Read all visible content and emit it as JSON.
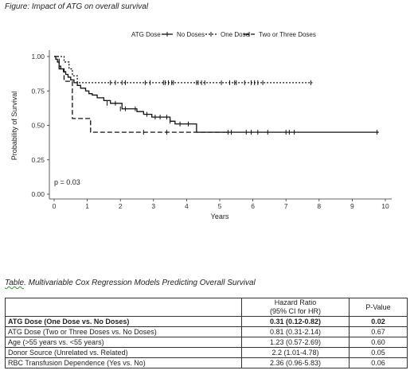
{
  "figure_caption": "Figure:  Impact of ATG on overall survival",
  "chart_data": {
    "type": "line",
    "legend_title": "ATG Dose",
    "legend_position": "top",
    "xlabel": "Years",
    "ylabel": "Probability of Survival",
    "xlim": [
      0,
      10
    ],
    "ylim": [
      0,
      1
    ],
    "x_ticks": [
      "0",
      "1",
      "2",
      "3",
      "4",
      "5",
      "6",
      "7",
      "8",
      "9",
      "10"
    ],
    "y_ticks": [
      "0.00",
      "0.25",
      "0.50",
      "0.75",
      "1.00"
    ],
    "annotation": "p = 0.03",
    "grid": false,
    "series": [
      {
        "name": "No Doses",
        "dash": "solid",
        "step_x": [
          0,
          0.05,
          0.1,
          0.15,
          0.2,
          0.28,
          0.35,
          0.42,
          0.5,
          0.6,
          0.7,
          0.8,
          0.95,
          1.05,
          1.15,
          1.3,
          1.5,
          1.7,
          2.05,
          2.3,
          2.5,
          2.7,
          2.95,
          3.5,
          3.65,
          4.3,
          9.8
        ],
        "step_y": [
          1.0,
          0.98,
          0.96,
          0.93,
          0.91,
          0.89,
          0.87,
          0.85,
          0.83,
          0.81,
          0.79,
          0.77,
          0.75,
          0.73,
          0.72,
          0.7,
          0.68,
          0.66,
          0.62,
          0.62,
          0.6,
          0.58,
          0.56,
          0.53,
          0.51,
          0.45,
          0.45
        ],
        "censor_x": [
          1.6,
          1.85,
          2.0,
          2.15,
          2.45,
          2.8,
          3.05,
          3.2,
          3.4,
          3.5,
          3.8,
          4.05,
          5.35,
          5.8,
          5.95,
          6.15,
          6.45,
          7.0,
          7.1,
          7.25,
          9.75
        ],
        "censor_y": [
          0.66,
          0.66,
          0.62,
          0.62,
          0.62,
          0.58,
          0.56,
          0.56,
          0.56,
          0.53,
          0.51,
          0.51,
          0.45,
          0.45,
          0.45,
          0.45,
          0.45,
          0.45,
          0.45,
          0.45,
          0.45
        ]
      },
      {
        "name": "One Dose",
        "dash": "dotted",
        "step_x": [
          0,
          0.3,
          0.45,
          0.55,
          0.7,
          7.8
        ],
        "step_y": [
          1.0,
          0.96,
          0.91,
          0.86,
          0.81,
          0.81
        ],
        "censor_x": [
          1.7,
          1.85,
          2.05,
          2.15,
          2.75,
          2.9,
          3.3,
          3.35,
          3.45,
          3.55,
          3.6,
          4.3,
          4.35,
          4.45,
          4.55,
          5.05,
          5.3,
          5.45,
          5.5,
          5.75,
          5.95,
          6.05,
          6.15,
          6.3,
          7.75
        ],
        "censor_y": [
          0.81,
          0.81,
          0.81,
          0.81,
          0.81,
          0.81,
          0.81,
          0.81,
          0.81,
          0.81,
          0.81,
          0.81,
          0.81,
          0.81,
          0.81,
          0.81,
          0.81,
          0.81,
          0.81,
          0.81,
          0.81,
          0.81,
          0.81,
          0.81,
          0.81
        ]
      },
      {
        "name": "Two or Three Doses",
        "dash": "dashed",
        "step_x": [
          0,
          0.15,
          0.3,
          0.55,
          1.1,
          5.3
        ],
        "step_y": [
          1.0,
          0.91,
          0.82,
          0.55,
          0.45,
          0.45
        ],
        "censor_x": [
          2.7,
          3.4,
          5.25
        ],
        "censor_y": [
          0.45,
          0.45,
          0.45
        ]
      }
    ]
  },
  "table_caption_word": "Table",
  "table_caption_rest": ".  Multivariable Cox Regression Models Predicting Overall Survival",
  "table": {
    "header_hr_line1": "Hazard Ratio",
    "header_hr_line2": "(95% CI for HR)",
    "header_p": "P-Value",
    "rows": [
      {
        "label": "ATG Dose (One Dose vs. No Doses)",
        "hr": "0.31 (0.12-0.82)",
        "p": "0.02"
      },
      {
        "label": "ATG Dose (Two or Three Doses vs. No Doses)",
        "hr": "0.81 (0.31-2.14)",
        "p": "0.67"
      },
      {
        "label": "Age (>55 years vs. <55 years)",
        "hr": "1.23 (0.57-2.69)",
        "p": "0.60"
      },
      {
        "label": "Donor Source (Unrelated vs. Related)",
        "hr": "2.2 (1.01-4.78)",
        "p": "0.05"
      },
      {
        "label": "RBC Transfusion Dependence (Yes vs. No)",
        "hr": "2.36 (0.96-5.83)",
        "p": "0.06"
      }
    ]
  }
}
